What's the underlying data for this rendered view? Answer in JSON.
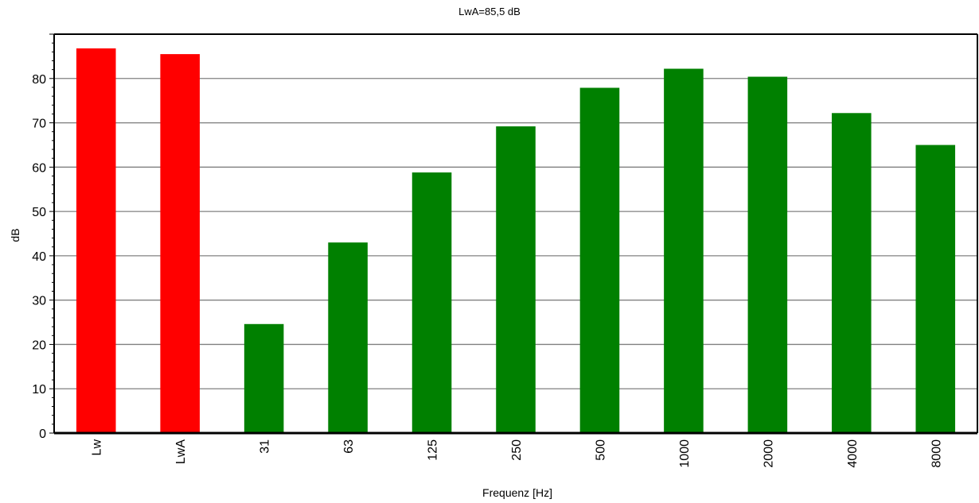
{
  "chart_data": {
    "type": "bar",
    "title": "LwA=85,5 dB",
    "xlabel": "Frequenz [Hz]",
    "ylabel": "dB",
    "categories": [
      "Lw",
      "LwA",
      "31",
      "63",
      "125",
      "250",
      "500",
      "1000",
      "2000",
      "4000",
      "8000"
    ],
    "values": [
      86.8,
      85.5,
      24.6,
      43.0,
      58.8,
      69.2,
      77.9,
      82.2,
      80.4,
      72.2,
      65.0
    ],
    "bar_colors": [
      "#ff0000",
      "#ff0000",
      "#008000",
      "#008000",
      "#008000",
      "#008000",
      "#008000",
      "#008000",
      "#008000",
      "#008000",
      "#008000"
    ],
    "ylim": [
      0,
      90
    ],
    "yticks": [
      "0",
      "10",
      "20",
      "30",
      "40",
      "50",
      "60",
      "70",
      "80"
    ],
    "grid": true,
    "legend": "none"
  }
}
